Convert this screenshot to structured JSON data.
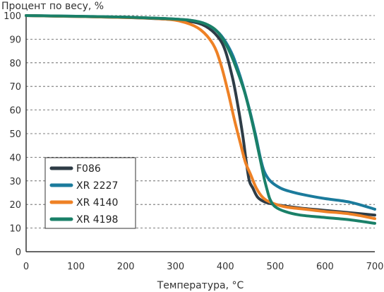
{
  "chart_data": {
    "type": "line",
    "title": "",
    "ylabel": "Процент по весу, %",
    "xlabel": "Температура, °C",
    "xlim": [
      0,
      700
    ],
    "ylim": [
      0,
      100
    ],
    "x_ticks": [
      "0",
      "100",
      "200",
      "300",
      "400",
      "500",
      "600",
      "700"
    ],
    "y_ticks": [
      "0",
      "10",
      "20",
      "30",
      "40",
      "50",
      "60",
      "70",
      "80",
      "90",
      "100"
    ],
    "grid": "horizontal-dashed",
    "legend_position": "bottom-left",
    "series": [
      {
        "name": "F086",
        "color": "#2e3c46",
        "points": [
          [
            0,
            100
          ],
          [
            100,
            99.6
          ],
          [
            200,
            99.2
          ],
          [
            280,
            98.5
          ],
          [
            330,
            97.5
          ],
          [
            360,
            95.5
          ],
          [
            385,
            91
          ],
          [
            400,
            85
          ],
          [
            415,
            73
          ],
          [
            425,
            62
          ],
          [
            435,
            49
          ],
          [
            442,
            38
          ],
          [
            448,
            30
          ],
          [
            455,
            27
          ],
          [
            465,
            23
          ],
          [
            480,
            21
          ],
          [
            500,
            20
          ],
          [
            550,
            18.5
          ],
          [
            600,
            17.5
          ],
          [
            650,
            16.5
          ],
          [
            700,
            15.5
          ]
        ]
      },
      {
        "name": "XR 2227",
        "color": "#1b7b9c",
        "points": [
          [
            0,
            100
          ],
          [
            100,
            99.7
          ],
          [
            200,
            99.3
          ],
          [
            280,
            98.7
          ],
          [
            330,
            98
          ],
          [
            360,
            96.5
          ],
          [
            385,
            93
          ],
          [
            400,
            89
          ],
          [
            415,
            83
          ],
          [
            430,
            74
          ],
          [
            445,
            63
          ],
          [
            460,
            50
          ],
          [
            470,
            40
          ],
          [
            478,
            34
          ],
          [
            490,
            30
          ],
          [
            510,
            27
          ],
          [
            530,
            25.5
          ],
          [
            560,
            24
          ],
          [
            600,
            22.5
          ],
          [
            650,
            21
          ],
          [
            700,
            18
          ]
        ]
      },
      {
        "name": "XR 4140",
        "color": "#ee8125",
        "points": [
          [
            0,
            100
          ],
          [
            100,
            99.6
          ],
          [
            200,
            99.2
          ],
          [
            280,
            98.5
          ],
          [
            320,
            97
          ],
          [
            350,
            94
          ],
          [
            375,
            88
          ],
          [
            390,
            80
          ],
          [
            405,
            68
          ],
          [
            418,
            56
          ],
          [
            430,
            46
          ],
          [
            440,
            38
          ],
          [
            450,
            33
          ],
          [
            462,
            27
          ],
          [
            475,
            23
          ],
          [
            490,
            21
          ],
          [
            520,
            19
          ],
          [
            560,
            18
          ],
          [
            600,
            17
          ],
          [
            650,
            16
          ],
          [
            700,
            14
          ]
        ]
      },
      {
        "name": "XR 4198",
        "color": "#1a8068",
        "points": [
          [
            0,
            100
          ],
          [
            100,
            99.7
          ],
          [
            200,
            99.3
          ],
          [
            280,
            98.7
          ],
          [
            330,
            98
          ],
          [
            360,
            96.5
          ],
          [
            380,
            94
          ],
          [
            395,
            90
          ],
          [
            410,
            84
          ],
          [
            425,
            76
          ],
          [
            438,
            68
          ],
          [
            448,
            60
          ],
          [
            458,
            51
          ],
          [
            466,
            43
          ],
          [
            472,
            37
          ],
          [
            478,
            31
          ],
          [
            484,
            26
          ],
          [
            490,
            22
          ],
          [
            500,
            19
          ],
          [
            520,
            17
          ],
          [
            550,
            15.5
          ],
          [
            600,
            14.5
          ],
          [
            650,
            13.5
          ],
          [
            700,
            12
          ]
        ]
      }
    ]
  }
}
